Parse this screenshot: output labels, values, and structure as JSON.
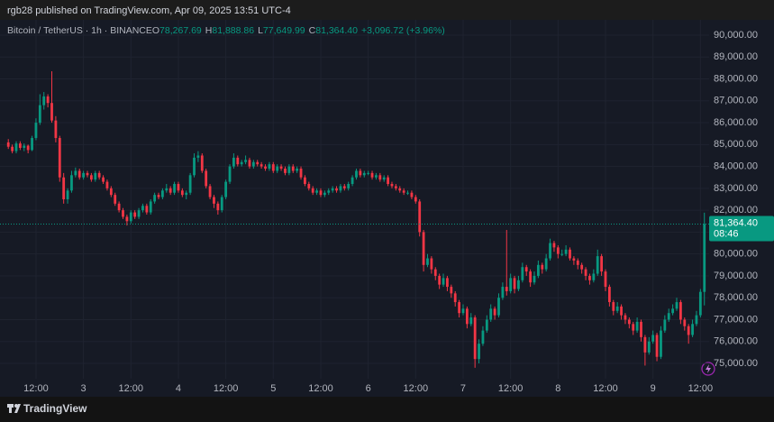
{
  "header": {
    "title": "rgb28 published on TradingView.com, Apr 09, 2025 13:51 UTC-4"
  },
  "footer": {
    "brand": "TradingView"
  },
  "chart_data": {
    "type": "candlestick",
    "legend": {
      "symbol": "Bitcoin / TetherUS · 1h · BINANCE",
      "o_label": "O",
      "open": "78,267.69",
      "h_label": "H",
      "high": "81,888.86",
      "l_label": "L",
      "low": "77,649.99",
      "c_label": "C",
      "close": "81,364.40",
      "change": "+3,096.72 (+3.96%)"
    },
    "up_color": "#089981",
    "down_color": "#f23645",
    "grid": true,
    "last_price": {
      "value": 81364.4,
      "label": "81,364.40",
      "countdown": "08:46"
    },
    "xlim": [
      -2.1,
      177.2
    ],
    "xticks": [
      {
        "value": 7,
        "label": "12:00"
      },
      {
        "value": 19,
        "label": "3"
      },
      {
        "value": 31,
        "label": "12:00"
      },
      {
        "value": 43,
        "label": "4"
      },
      {
        "value": 55,
        "label": "12:00"
      },
      {
        "value": 67,
        "label": "5"
      },
      {
        "value": 79,
        "label": "12:00"
      },
      {
        "value": 91,
        "label": "6"
      },
      {
        "value": 103,
        "label": "12:00"
      },
      {
        "value": 115,
        "label": "7"
      },
      {
        "value": 127,
        "label": "12:00"
      },
      {
        "value": 139,
        "label": "8"
      },
      {
        "value": 151,
        "label": "12:00"
      },
      {
        "value": 163,
        "label": "9"
      },
      {
        "value": 175,
        "label": "12:00"
      }
    ],
    "ylim": [
      74300,
      90700
    ],
    "yticks": [
      {
        "value": 75000,
        "label": "75,000.00"
      },
      {
        "value": 76000,
        "label": "76,000.00"
      },
      {
        "value": 77000,
        "label": "77,000.00"
      },
      {
        "value": 78000,
        "label": "78,000.00"
      },
      {
        "value": 79000,
        "label": "79,000.00"
      },
      {
        "value": 80000,
        "label": "80,000.00"
      },
      {
        "value": 81000,
        "label": "81,000.00"
      },
      {
        "value": 82000,
        "label": "82,000.00"
      },
      {
        "value": 83000,
        "label": "83,000.00"
      },
      {
        "value": 84000,
        "label": "84,000.00"
      },
      {
        "value": 85000,
        "label": "85,000.00"
      },
      {
        "value": 86000,
        "label": "86,000.00"
      },
      {
        "value": 87000,
        "label": "87,000.00"
      },
      {
        "value": 88000,
        "label": "88,000.00"
      },
      {
        "value": 89000,
        "label": "89,000.00"
      },
      {
        "value": 90000,
        "label": "90,000.00"
      }
    ],
    "candles": [
      [
        85100,
        85250,
        84800,
        84900
      ],
      [
        84900,
        85000,
        84600,
        84700
      ],
      [
        84700,
        85150,
        84600,
        85050
      ],
      [
        85050,
        85150,
        84750,
        84850
      ],
      [
        84850,
        85050,
        84700,
        84950
      ],
      [
        84950,
        85000,
        84600,
        84750
      ],
      [
        84750,
        85400,
        84700,
        85300
      ],
      [
        85300,
        86200,
        85200,
        86000
      ],
      [
        86000,
        87300,
        85900,
        86800
      ],
      [
        86800,
        87400,
        86600,
        87200
      ],
      [
        87200,
        87300,
        86700,
        86900
      ],
      [
        86900,
        88350,
        86000,
        86100
      ],
      [
        86100,
        86300,
        85100,
        85300
      ],
      [
        85300,
        85400,
        83300,
        83500
      ],
      [
        83500,
        83700,
        82300,
        82500
      ],
      [
        82500,
        83000,
        82300,
        82900
      ],
      [
        82900,
        83800,
        82800,
        83600
      ],
      [
        83600,
        83950,
        83500,
        83800
      ],
      [
        83800,
        83900,
        83400,
        83500
      ],
      [
        83500,
        83800,
        83400,
        83700
      ],
      [
        83700,
        83800,
        83500,
        83600
      ],
      [
        83600,
        83700,
        83300,
        83400
      ],
      [
        83400,
        83800,
        83300,
        83700
      ],
      [
        83700,
        83800,
        83400,
        83500
      ],
      [
        83500,
        83600,
        83200,
        83300
      ],
      [
        83300,
        83400,
        82900,
        83000
      ],
      [
        83000,
        83100,
        82600,
        82700
      ],
      [
        82700,
        82800,
        82200,
        82300
      ],
      [
        82300,
        82400,
        81900,
        82000
      ],
      [
        82000,
        82100,
        81600,
        81700
      ],
      [
        81700,
        81800,
        81300,
        81500
      ],
      [
        81500,
        82000,
        81400,
        81900
      ],
      [
        81900,
        82000,
        81600,
        81700
      ],
      [
        81700,
        82100,
        81600,
        82000
      ],
      [
        82000,
        82300,
        81900,
        82200
      ],
      [
        82200,
        82300,
        81800,
        81900
      ],
      [
        81900,
        82500,
        81800,
        82400
      ],
      [
        82400,
        82800,
        82300,
        82700
      ],
      [
        82700,
        82800,
        82500,
        82600
      ],
      [
        82600,
        83000,
        82500,
        82900
      ],
      [
        82900,
        83200,
        82800,
        83000
      ],
      [
        83000,
        83100,
        82700,
        82800
      ],
      [
        82800,
        83300,
        82700,
        83200
      ],
      [
        83200,
        83300,
        82800,
        82900
      ],
      [
        82900,
        83000,
        82600,
        82700
      ],
      [
        82700,
        82900,
        82500,
        82800
      ],
      [
        82800,
        83700,
        82700,
        83600
      ],
      [
        83600,
        84600,
        83500,
        84400
      ],
      [
        84400,
        84700,
        84200,
        84500
      ],
      [
        84500,
        84600,
        83700,
        83800
      ],
      [
        83800,
        83900,
        83000,
        83100
      ],
      [
        83100,
        83200,
        82500,
        82600
      ],
      [
        82600,
        82700,
        82100,
        82300
      ],
      [
        82300,
        82400,
        81800,
        82000
      ],
      [
        82000,
        82700,
        81900,
        82600
      ],
      [
        82600,
        83400,
        82500,
        83300
      ],
      [
        83300,
        84100,
        83200,
        84000
      ],
      [
        84000,
        84600,
        83900,
        84400
      ],
      [
        84400,
        84500,
        84000,
        84100
      ],
      [
        84100,
        84300,
        84000,
        84200
      ],
      [
        84200,
        84500,
        84100,
        84300
      ],
      [
        84300,
        84400,
        83900,
        84000
      ],
      [
        84000,
        84300,
        83900,
        84200
      ],
      [
        84200,
        84300,
        84000,
        84100
      ],
      [
        84100,
        84200,
        83900,
        84000
      ],
      [
        84000,
        84100,
        83800,
        83900
      ],
      [
        83900,
        84200,
        83800,
        84100
      ],
      [
        84100,
        84200,
        83700,
        83800
      ],
      [
        83800,
        84100,
        83700,
        84000
      ],
      [
        84000,
        84100,
        83800,
        83900
      ],
      [
        83900,
        84000,
        83600,
        83700
      ],
      [
        83700,
        84100,
        83600,
        84000
      ],
      [
        84000,
        84100,
        83700,
        83800
      ],
      [
        83800,
        84000,
        83700,
        83900
      ],
      [
        83900,
        84000,
        83400,
        83500
      ],
      [
        83500,
        83600,
        83100,
        83200
      ],
      [
        83200,
        83300,
        82900,
        83000
      ],
      [
        83000,
        83100,
        82700,
        82800
      ],
      [
        82800,
        83000,
        82700,
        82900
      ],
      [
        82900,
        83000,
        82600,
        82700
      ],
      [
        82700,
        82900,
        82600,
        82800
      ],
      [
        82800,
        83000,
        82700,
        82900
      ],
      [
        82900,
        83100,
        82800,
        83000
      ],
      [
        83000,
        83100,
        82800,
        82900
      ],
      [
        82900,
        83200,
        82800,
        83100
      ],
      [
        83100,
        83200,
        82900,
        83000
      ],
      [
        83000,
        83300,
        82900,
        83200
      ],
      [
        83200,
        83600,
        83100,
        83500
      ],
      [
        83500,
        83900,
        83400,
        83800
      ],
      [
        83800,
        83900,
        83500,
        83600
      ],
      [
        83600,
        83800,
        83500,
        83700
      ],
      [
        83700,
        83800,
        83600,
        83700
      ],
      [
        83700,
        83800,
        83400,
        83500
      ],
      [
        83500,
        83700,
        83400,
        83600
      ],
      [
        83600,
        83700,
        83300,
        83400
      ],
      [
        83400,
        83600,
        83300,
        83500
      ],
      [
        83500,
        83600,
        83100,
        83200
      ],
      [
        83200,
        83300,
        83000,
        83100
      ],
      [
        83100,
        83200,
        82900,
        83000
      ],
      [
        83000,
        83100,
        82800,
        82900
      ],
      [
        82900,
        83000,
        82700,
        82800
      ],
      [
        82800,
        82900,
        82700,
        82800
      ],
      [
        82800,
        82900,
        82500,
        82600
      ],
      [
        82600,
        82700,
        82300,
        82400
      ],
      [
        82400,
        82500,
        80800,
        81000
      ],
      [
        81000,
        81100,
        79200,
        79500
      ],
      [
        79500,
        80000,
        79400,
        79800
      ],
      [
        79800,
        79900,
        79100,
        79300
      ],
      [
        79300,
        79400,
        78800,
        79000
      ],
      [
        79000,
        79100,
        78400,
        78600
      ],
      [
        78600,
        79100,
        78500,
        78900
      ],
      [
        78900,
        79000,
        78300,
        78500
      ],
      [
        78500,
        78600,
        78000,
        78200
      ],
      [
        78200,
        78300,
        77600,
        77800
      ],
      [
        77800,
        77900,
        77100,
        77300
      ],
      [
        77300,
        77700,
        77200,
        77500
      ],
      [
        77500,
        77600,
        76600,
        76800
      ],
      [
        76800,
        77300,
        76700,
        77100
      ],
      [
        77100,
        77200,
        74800,
        75200
      ],
      [
        75200,
        76100,
        75000,
        75900
      ],
      [
        75900,
        76700,
        75800,
        76500
      ],
      [
        76500,
        77200,
        76400,
        77000
      ],
      [
        77000,
        77700,
        76900,
        77500
      ],
      [
        77500,
        77600,
        77000,
        77200
      ],
      [
        77200,
        78200,
        77100,
        78000
      ],
      [
        78000,
        78700,
        77900,
        78500
      ],
      [
        78500,
        81100,
        78100,
        78300
      ],
      [
        78300,
        79100,
        78200,
        78900
      ],
      [
        78900,
        79000,
        78200,
        78400
      ],
      [
        78400,
        79000,
        78300,
        78800
      ],
      [
        78800,
        79600,
        78700,
        79400
      ],
      [
        79400,
        79500,
        79000,
        79200
      ],
      [
        79200,
        79300,
        78500,
        78700
      ],
      [
        78700,
        79200,
        78600,
        79000
      ],
      [
        79000,
        79700,
        78900,
        79500
      ],
      [
        79500,
        79600,
        79100,
        79300
      ],
      [
        79300,
        80000,
        79200,
        79800
      ],
      [
        79800,
        80700,
        79700,
        80500
      ],
      [
        80500,
        80600,
        80100,
        80300
      ],
      [
        80300,
        80400,
        79800,
        80000
      ],
      [
        80000,
        80200,
        79900,
        80000
      ],
      [
        80000,
        80400,
        79900,
        80200
      ],
      [
        80200,
        80300,
        79700,
        79800
      ],
      [
        79800,
        79900,
        79500,
        79700
      ],
      [
        79700,
        79800,
        79300,
        79500
      ],
      [
        79500,
        79600,
        79100,
        79300
      ],
      [
        79300,
        79400,
        78800,
        79000
      ],
      [
        79000,
        79100,
        78600,
        78800
      ],
      [
        78800,
        79300,
        78700,
        79100
      ],
      [
        79100,
        80200,
        79000,
        79900
      ],
      [
        79900,
        80000,
        79000,
        79200
      ],
      [
        79200,
        79300,
        78300,
        78500
      ],
      [
        78500,
        78600,
        77600,
        77800
      ],
      [
        77800,
        77900,
        77200,
        77400
      ],
      [
        77400,
        77800,
        77300,
        77600
      ],
      [
        77600,
        77700,
        77000,
        77200
      ],
      [
        77200,
        77300,
        76800,
        77000
      ],
      [
        77000,
        77100,
        76600,
        76800
      ],
      [
        76800,
        76900,
        76300,
        76500
      ],
      [
        76500,
        77100,
        76400,
        76900
      ],
      [
        76900,
        77000,
        76000,
        76200
      ],
      [
        76200,
        76300,
        74900,
        75500
      ],
      [
        75500,
        76200,
        75400,
        76000
      ],
      [
        76000,
        76500,
        75900,
        76300
      ],
      [
        76300,
        76400,
        75100,
        75300
      ],
      [
        75300,
        76700,
        75200,
        76500
      ],
      [
        76500,
        77200,
        76400,
        77000
      ],
      [
        77000,
        77500,
        76900,
        77300
      ],
      [
        77300,
        77700,
        77200,
        77500
      ],
      [
        77500,
        78000,
        77400,
        77800
      ],
      [
        77800,
        77900,
        76800,
        77000
      ],
      [
        77000,
        77100,
        76500,
        76700
      ],
      [
        76700,
        76800,
        75900,
        76300
      ],
      [
        76300,
        77000,
        76200,
        76800
      ],
      [
        76800,
        77400,
        76700,
        77200
      ],
      [
        77200,
        78400,
        77100,
        78270
      ],
      [
        78267.69,
        81888.86,
        77649.99,
        81364.4
      ]
    ]
  }
}
